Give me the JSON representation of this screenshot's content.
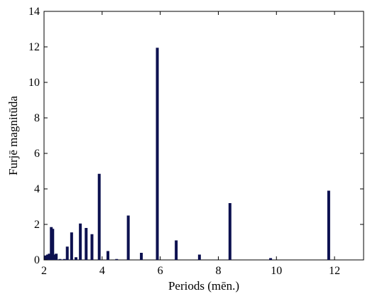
{
  "chart_data": {
    "type": "bar",
    "title": "",
    "xlabel": "Periods (mēn.)",
    "ylabel": "Furjē magnitūda",
    "xlim": [
      2,
      13
    ],
    "ylim": [
      0,
      14
    ],
    "x_ticks": [
      "2",
      "4",
      "6",
      "8",
      "10",
      "12"
    ],
    "y_ticks": [
      "0",
      "2",
      "4",
      "6",
      "8",
      "10",
      "12",
      "14"
    ],
    "bar_color": "#0d1150",
    "grid": false,
    "legend": "none",
    "series": [
      {
        "x": [
          2.05,
          2.12,
          2.18,
          2.25,
          2.3,
          2.36,
          2.42,
          2.55,
          2.7,
          2.8,
          2.95,
          3.1,
          3.25,
          3.45,
          3.65,
          3.9,
          4.2,
          4.5,
          4.9,
          5.35,
          5.9,
          6.55,
          7.35,
          8.4,
          9.8,
          11.8
        ],
        "values": [
          0.25,
          0.3,
          0.35,
          1.85,
          1.75,
          0.3,
          0.35,
          0.05,
          0.05,
          0.75,
          1.55,
          0.15,
          2.05,
          1.8,
          1.45,
          4.85,
          0.5,
          0.05,
          2.5,
          0.4,
          11.95,
          1.1,
          0.3,
          3.2,
          0.1,
          3.9
        ]
      }
    ]
  }
}
